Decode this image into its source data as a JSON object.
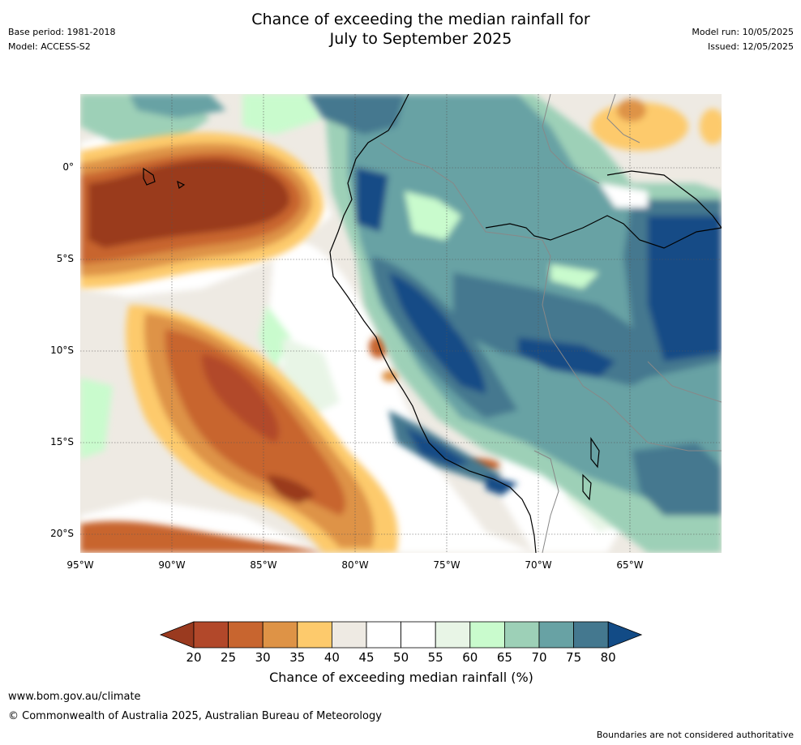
{
  "title_line1": "Chance of exceeding the median rainfall for",
  "title_line2": "July to September 2025",
  "base_period": "Base period: 1981-2018",
  "model": "Model: ACCESS-S2",
  "model_run": "Model run: 10/05/2025",
  "issued": "Issued: 12/05/2025",
  "lat_labels": [
    "0°",
    "5°S",
    "10°S",
    "15°S",
    "20°S"
  ],
  "lon_labels": [
    "95°W",
    "90°W",
    "85°W",
    "80°W",
    "75°W",
    "70°W",
    "65°W"
  ],
  "colorbar": {
    "label": "Chance of exceeding median rainfall (%)",
    "ticks": [
      "20",
      "25",
      "30",
      "35",
      "40",
      "45",
      "50",
      "55",
      "60",
      "65",
      "70",
      "75",
      "80"
    ],
    "colors": [
      "#9a3a1f",
      "#b2482a",
      "#c8652f",
      "#de9346",
      "#fdca6c",
      "#eeeae3",
      "#ffffff",
      "#ffffff",
      "#e8f5e6",
      "#c9fbcd",
      "#9dd0b7",
      "#68a2a4",
      "#44788f",
      "#124b86"
    ]
  },
  "footer": {
    "url": "www.bom.gov.au/climate",
    "copyright": "© Commonwealth of Australia 2025, Australian Bureau of Meteorology",
    "disclaimer": "Boundaries are not considered authoritative"
  }
}
